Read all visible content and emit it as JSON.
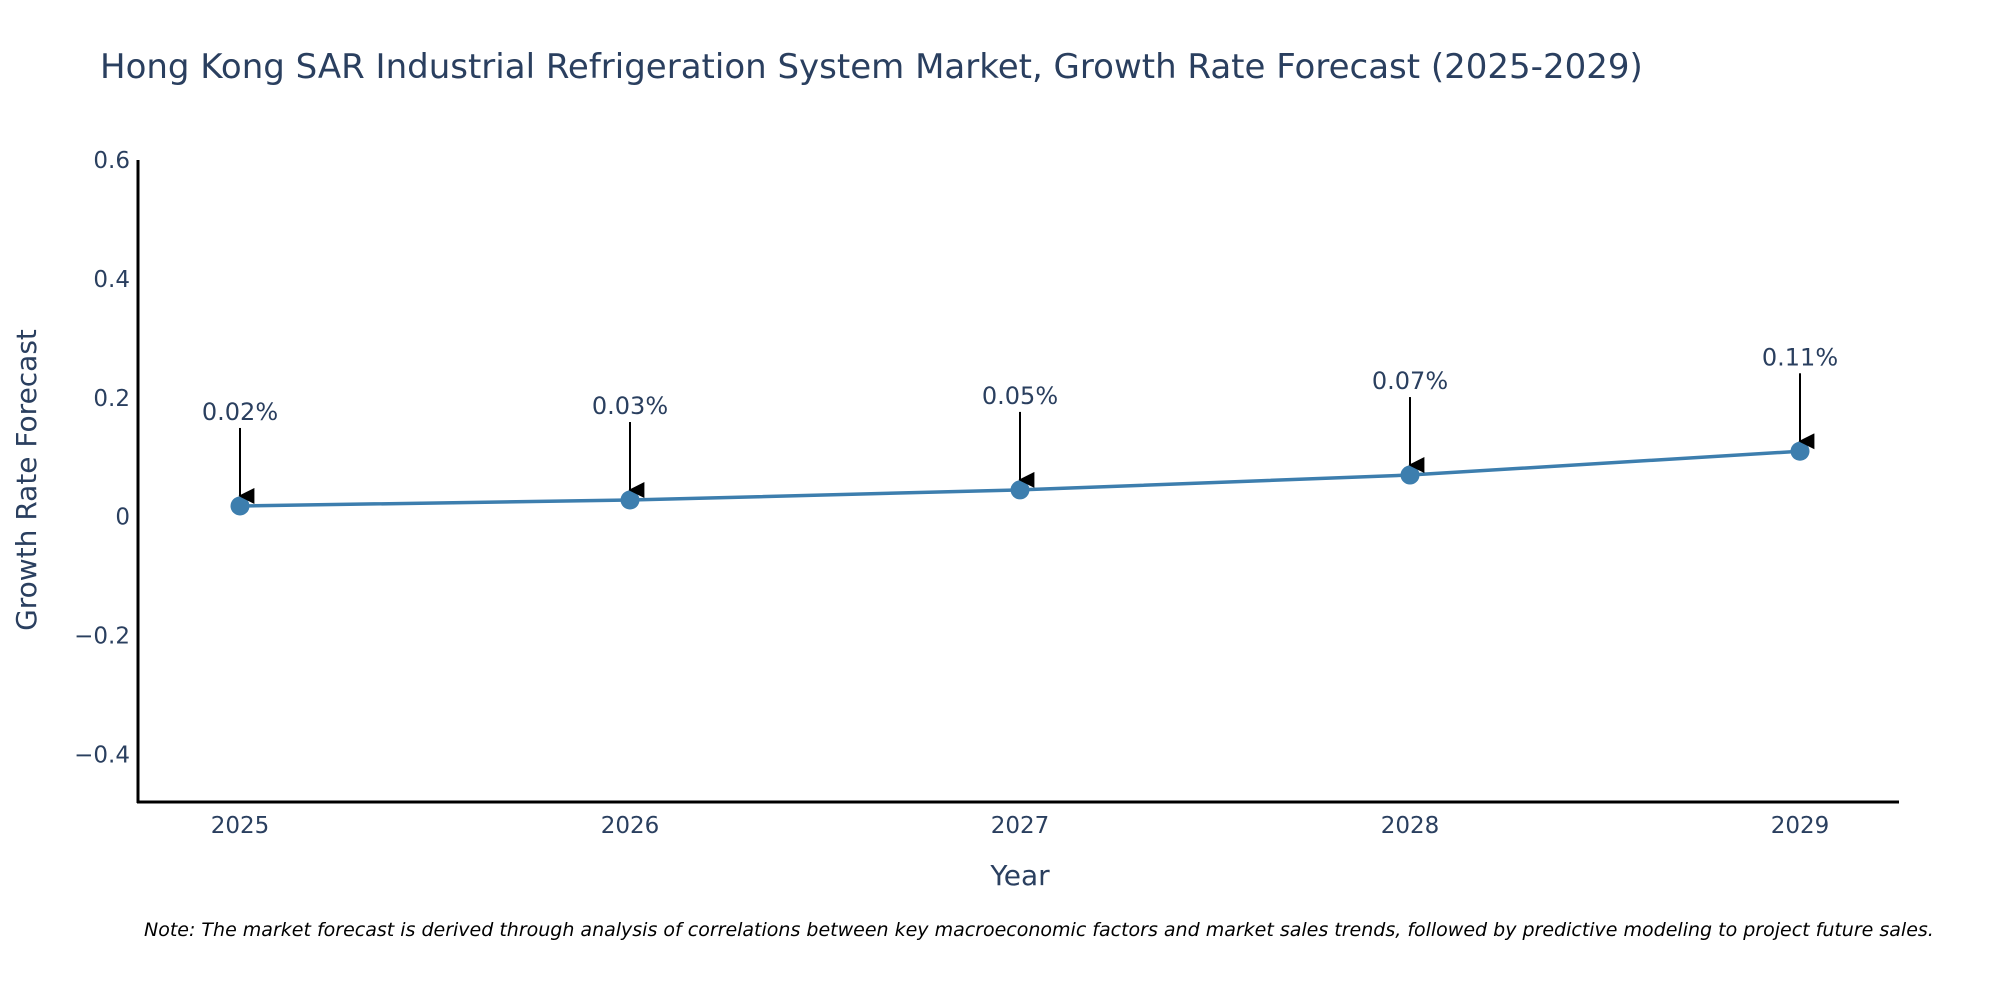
{
  "chart_data": {
    "type": "line",
    "title": "Hong Kong SAR Industrial Refrigeration System Market, Growth Rate Forecast (2025-2029)",
    "xlabel": "Year",
    "ylabel": "Growth Rate Forecast",
    "categories": [
      "2025",
      "2026",
      "2027",
      "2028",
      "2029"
    ],
    "values": [
      0.018,
      0.028,
      0.045,
      0.07,
      0.11
    ],
    "annotations": [
      "0.02%",
      "0.03%",
      "0.05%",
      "0.07%",
      "0.11%"
    ],
    "ylim": [
      -0.48,
      0.6
    ],
    "yticks": [
      0.6,
      0.4,
      0.2,
      0,
      -0.2,
      -0.4
    ],
    "ytick_labels": [
      "0.6",
      "0.4",
      "0.2",
      "0",
      "−0.2",
      "−0.4"
    ],
    "grid": false,
    "line_color": "#3d7eae",
    "annotation_arrow_color": "#000000"
  },
  "note": "Note: The market forecast is derived through analysis of correlations between key macroeconomic factors and market sales trends, followed by predictive modeling to project future sales."
}
